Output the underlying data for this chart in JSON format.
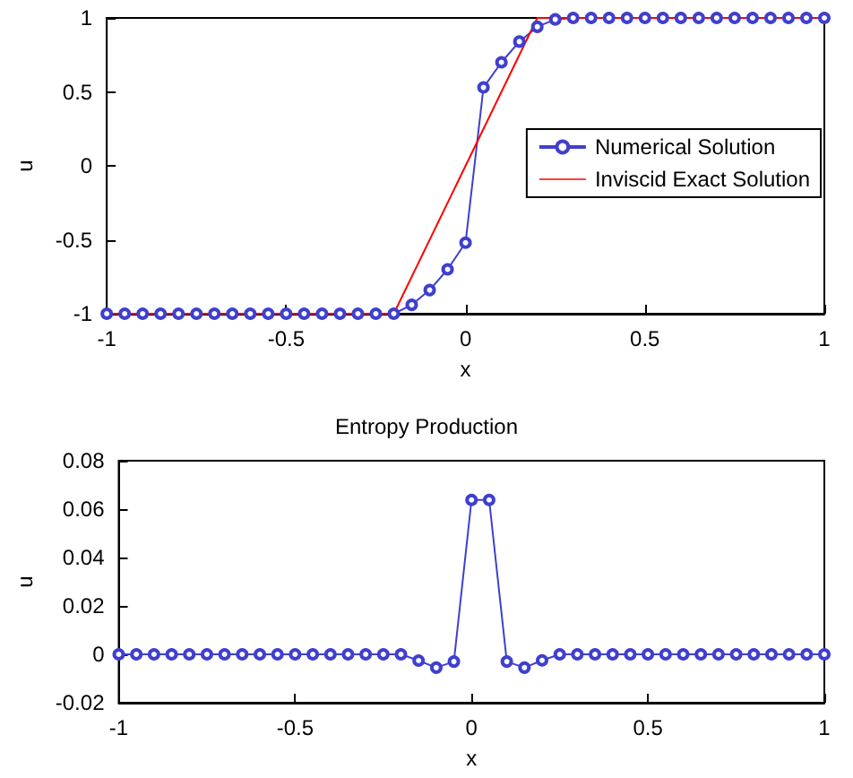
{
  "chart_data": [
    {
      "type": "line",
      "xlabel": "x",
      "ylabel": "u",
      "xlim": [
        -1,
        1
      ],
      "xticks": [
        -1,
        -0.5,
        0,
        0.5,
        1
      ],
      "ylim": [
        -1,
        1
      ],
      "yticks": [
        -1,
        -0.5,
        0,
        0.5,
        1
      ],
      "grid": false,
      "legend": "right",
      "series": [
        {
          "name": "Numerical Solution",
          "color": "#3f3fcf",
          "marker": "circle",
          "x": [
            -1,
            -0.95,
            -0.9,
            -0.85,
            -0.8,
            -0.75,
            -0.7,
            -0.65,
            -0.6,
            -0.55,
            -0.5,
            -0.45,
            -0.4,
            -0.35,
            -0.3,
            -0.25,
            -0.2,
            -0.15,
            -0.1,
            -0.05,
            0,
            0.05,
            0.1,
            0.15,
            0.2,
            0.25,
            0.3,
            0.35,
            0.4,
            0.45,
            0.5,
            0.55,
            0.6,
            0.65,
            0.7,
            0.75,
            0.8,
            0.85,
            0.9,
            0.95,
            1
          ],
          "values": [
            -1,
            -1,
            -1,
            -1,
            -1,
            -1,
            -1,
            -1,
            -1,
            -1,
            -1,
            -1,
            -1,
            -1,
            -1,
            -1,
            -1,
            -0.94,
            -0.84,
            -0.7,
            -0.52,
            0.53,
            0.7,
            0.84,
            0.94,
            0.99,
            1,
            1,
            1,
            1,
            1,
            1,
            1,
            1,
            1,
            1,
            1,
            1,
            1,
            1,
            1
          ]
        },
        {
          "name": "Inviscid Exact Solution",
          "color": "#ff0000",
          "marker": "none",
          "x": [
            -1,
            -0.2,
            0.2,
            1
          ],
          "values": [
            -1,
            -1,
            1,
            1
          ]
        }
      ]
    },
    {
      "type": "line",
      "title": "Entropy Production",
      "xlabel": "x",
      "ylabel": "u",
      "xlim": [
        -1,
        1
      ],
      "xticks": [
        -1,
        -0.5,
        0,
        0.5,
        1
      ],
      "ylim": [
        -0.02,
        0.08
      ],
      "yticks": [
        -0.02,
        0,
        0.02,
        0.04,
        0.06,
        0.08
      ],
      "grid": false,
      "legend": false,
      "series": [
        {
          "color": "#3f3fcf",
          "marker": "circle",
          "x": [
            -1,
            -0.95,
            -0.9,
            -0.85,
            -0.8,
            -0.75,
            -0.7,
            -0.65,
            -0.6,
            -0.55,
            -0.5,
            -0.45,
            -0.4,
            -0.35,
            -0.3,
            -0.25,
            -0.2,
            -0.15,
            -0.1,
            -0.05,
            0,
            0.05,
            0.1,
            0.15,
            0.2,
            0.25,
            0.3,
            0.35,
            0.4,
            0.45,
            0.5,
            0.55,
            0.6,
            0.65,
            0.7,
            0.75,
            0.8,
            0.85,
            0.9,
            0.95,
            1
          ],
          "values": [
            0,
            0,
            0,
            0,
            0,
            0,
            0,
            0,
            0,
            0,
            0,
            0,
            0,
            0,
            0,
            0,
            0,
            -0.0026,
            -0.0055,
            -0.003,
            0.0638,
            0.0638,
            -0.003,
            -0.0055,
            -0.0025,
            0,
            0,
            0,
            0,
            0,
            0,
            0,
            0,
            0,
            0,
            0,
            0,
            0,
            0,
            0,
            0
          ]
        }
      ]
    }
  ]
}
